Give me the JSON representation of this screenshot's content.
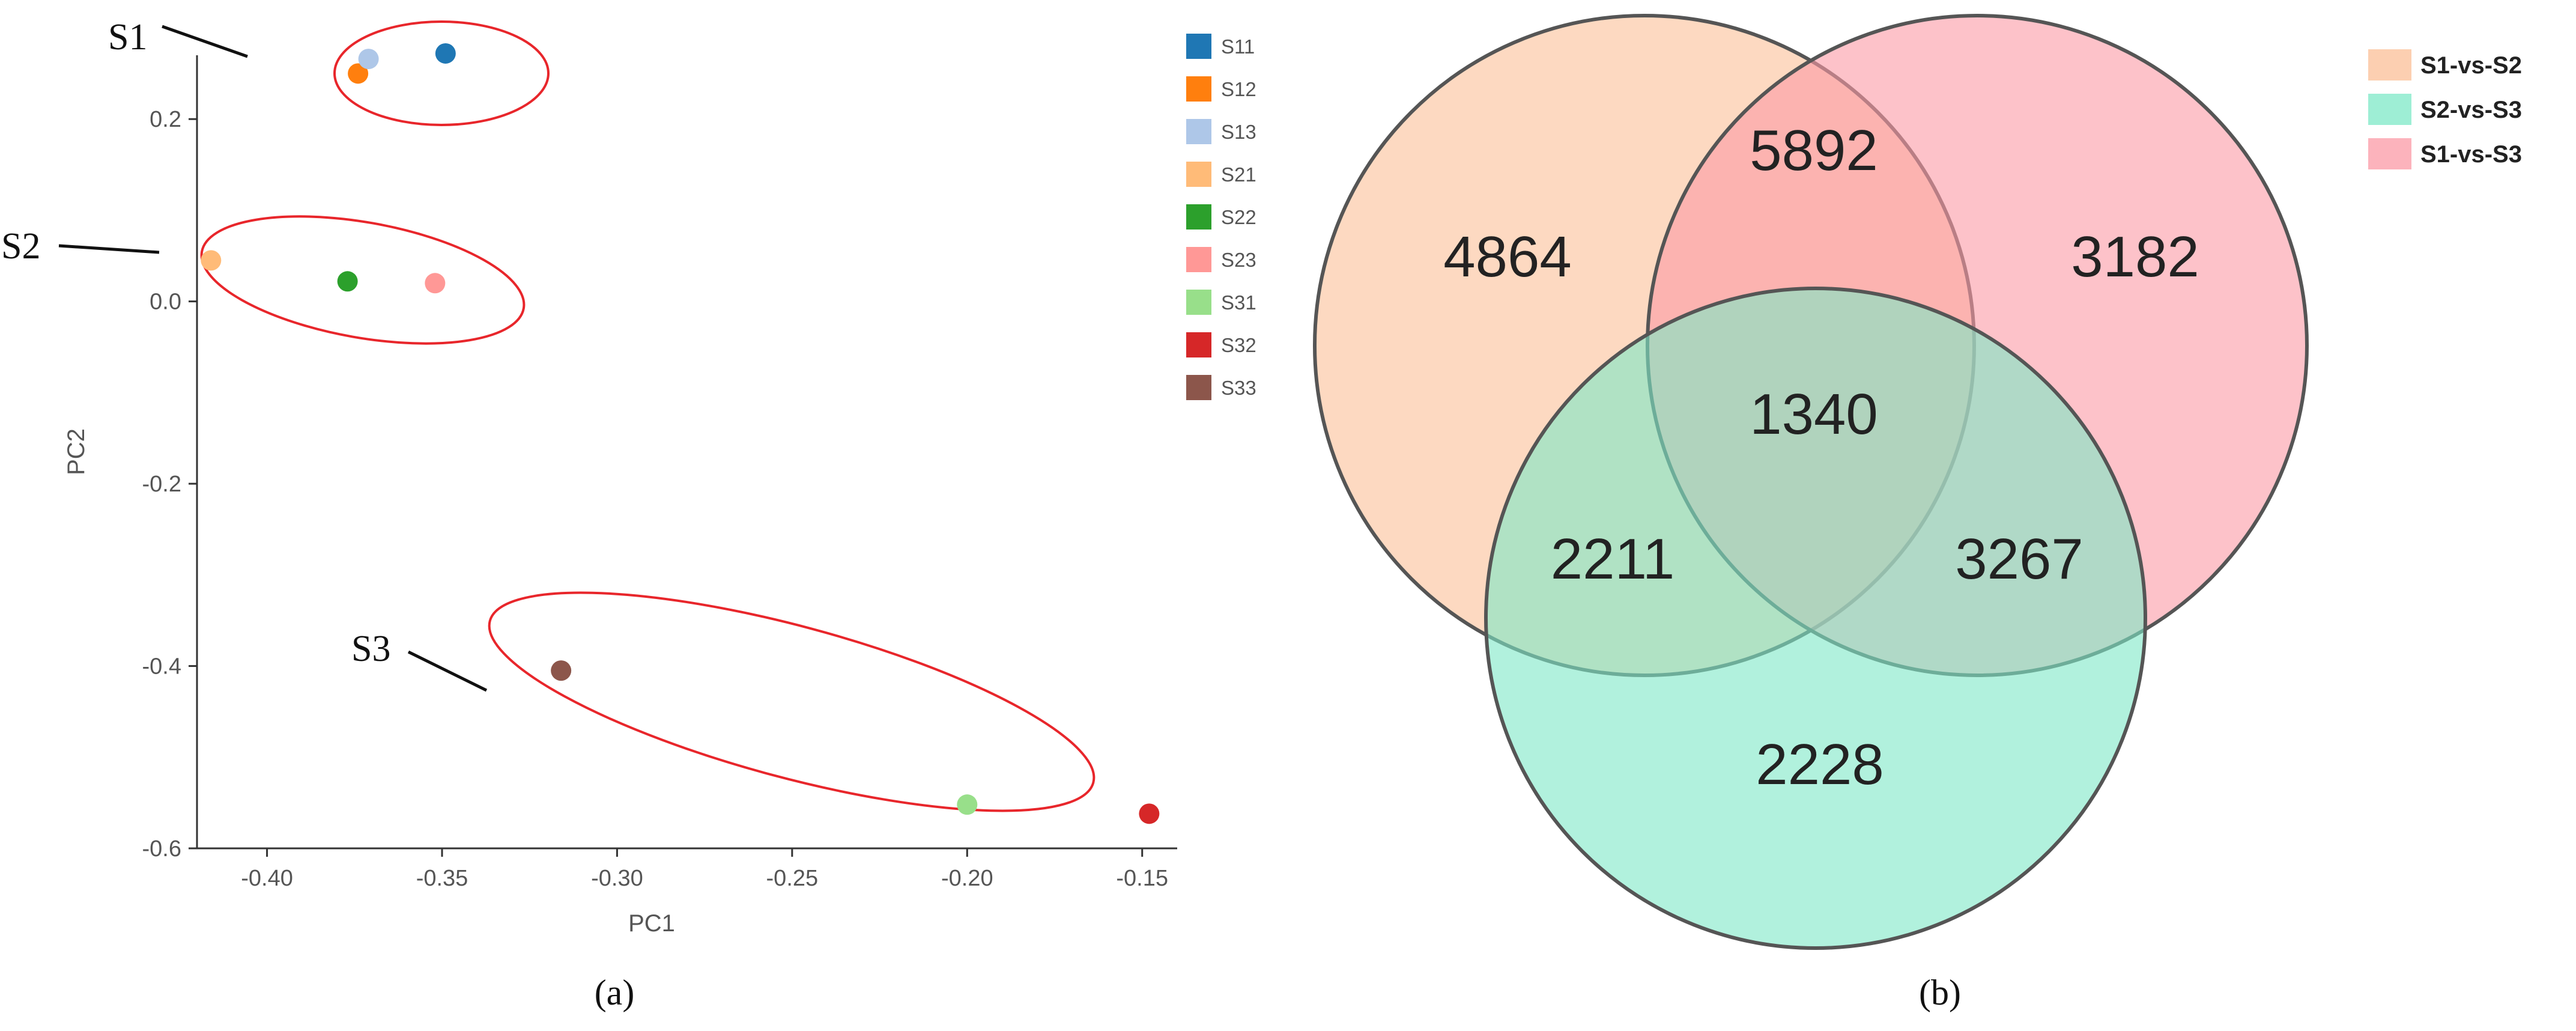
{
  "chart_data": [
    {
      "type": "scatter",
      "panel": "a",
      "xlabel": "PC1",
      "ylabel": "PC2",
      "xlim": [
        -0.42,
        -0.14
      ],
      "ylim": [
        -0.6,
        0.27
      ],
      "x_ticks": [
        -0.4,
        -0.35,
        -0.3,
        -0.25,
        -0.2,
        -0.15
      ],
      "x_tick_labels": [
        "-0.40",
        "-0.35",
        "-0.30",
        "-0.25",
        "-0.20",
        "-0.15"
      ],
      "y_ticks": [
        0.2,
        0.0,
        -0.2,
        -0.4,
        -0.6
      ],
      "y_tick_labels": [
        "0.2",
        "0.0",
        "-0.2",
        "-0.4",
        "-0.6"
      ],
      "grid": false,
      "legend_position": "right",
      "series": [
        {
          "name": "S11",
          "color": "#1f77b4",
          "x": -0.349,
          "y": 0.272
        },
        {
          "name": "S12",
          "color": "#ff7f0e",
          "x": -0.374,
          "y": 0.25
        },
        {
          "name": "S13",
          "color": "#aec7e8",
          "x": -0.371,
          "y": 0.266
        },
        {
          "name": "S21",
          "color": "#ffbb78",
          "x": -0.416,
          "y": 0.045
        },
        {
          "name": "S22",
          "color": "#2ca02c",
          "x": -0.377,
          "y": 0.022
        },
        {
          "name": "S23",
          "color": "#ff9896",
          "x": -0.352,
          "y": 0.02
        },
        {
          "name": "S31",
          "color": "#98df8a",
          "x": -0.2,
          "y": -0.552
        },
        {
          "name": "S32",
          "color": "#d62728",
          "x": -0.148,
          "y": -0.562
        },
        {
          "name": "S33",
          "color": "#8c564b",
          "x": -0.316,
          "y": -0.405
        }
      ],
      "groups": [
        {
          "label": "S1",
          "members": [
            "S11",
            "S12",
            "S13"
          ],
          "outline_color": "#e8262b"
        },
        {
          "label": "S2",
          "members": [
            "S21",
            "S22",
            "S23"
          ],
          "outline_color": "#e8262b"
        },
        {
          "label": "S3",
          "members": [
            "S31",
            "S32",
            "S33"
          ],
          "outline_color": "#e8262b"
        }
      ],
      "caption": "(a)"
    },
    {
      "type": "venn",
      "panel": "b",
      "sets": [
        {
          "name": "S1-vs-S2",
          "color": "#fbbf97"
        },
        {
          "name": "S2-vs-S3",
          "color": "#7de8c7"
        },
        {
          "name": "S1-vs-S3",
          "color": "#fb9aa5"
        }
      ],
      "regions": [
        {
          "sets": [
            "S1-vs-S2"
          ],
          "value": 4864
        },
        {
          "sets": [
            "S1-vs-S3"
          ],
          "value": 3182
        },
        {
          "sets": [
            "S2-vs-S3"
          ],
          "value": 2228
        },
        {
          "sets": [
            "S1-vs-S2",
            "S1-vs-S3"
          ],
          "value": 5892
        },
        {
          "sets": [
            "S1-vs-S2",
            "S2-vs-S3"
          ],
          "value": 2211
        },
        {
          "sets": [
            "S2-vs-S3",
            "S1-vs-S3"
          ],
          "value": 3267
        },
        {
          "sets": [
            "S1-vs-S2",
            "S2-vs-S3",
            "S1-vs-S3"
          ],
          "value": 1340
        }
      ],
      "legend_position": "top-right",
      "caption": "(b)"
    }
  ]
}
